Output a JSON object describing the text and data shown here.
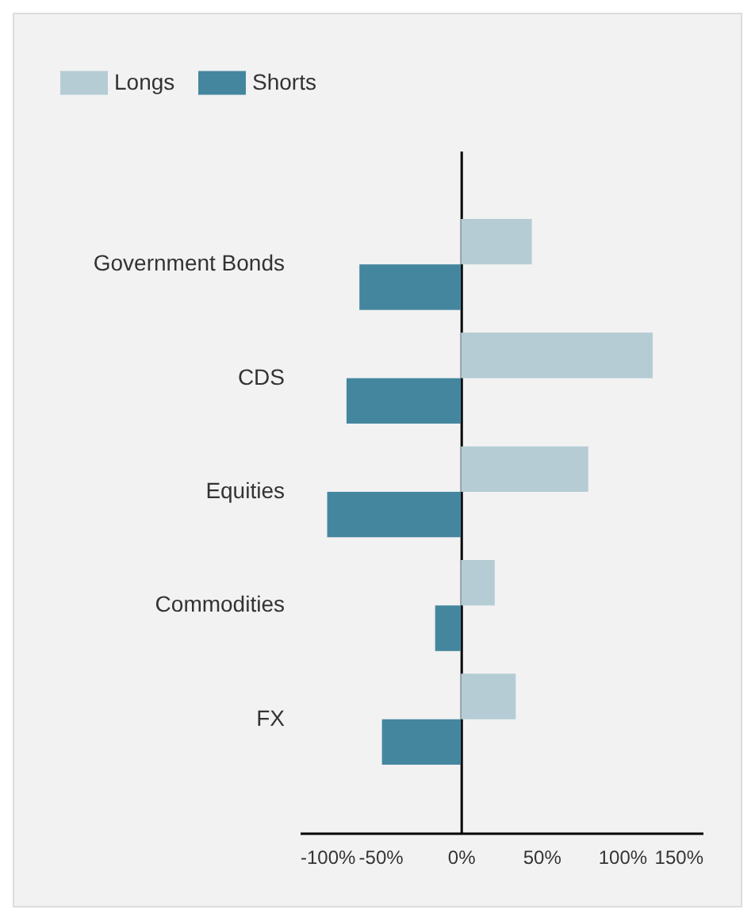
{
  "chart_data": {
    "type": "bar",
    "orientation": "horizontal",
    "categories": [
      "Government Bonds",
      "CDS",
      "Equities",
      "Commodities",
      "FX"
    ],
    "series": [
      {
        "name": "Longs",
        "color": "#b5ccd5",
        "values": [
          44,
          119,
          79,
          21,
          34
        ]
      },
      {
        "name": "Shorts",
        "color": "#45869f",
        "values": [
          -63,
          -71,
          -83,
          -16,
          -49
        ]
      }
    ],
    "xlim": [
      -100,
      150
    ],
    "xticks": [
      {
        "value": -100,
        "label": "-100%"
      },
      {
        "value": -50,
        "label": "-50%"
      },
      {
        "value": 0,
        "label": "0%"
      },
      {
        "value": 50,
        "label": "50%"
      },
      {
        "value": 100,
        "label": "100%"
      },
      {
        "value": 150,
        "label": "150%"
      }
    ],
    "legend": "top left"
  }
}
